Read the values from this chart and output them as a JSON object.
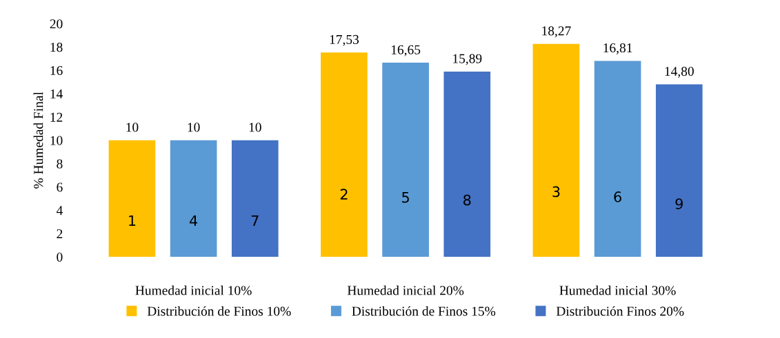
{
  "chart_data": {
    "type": "bar",
    "ylabel": "% Humedad Final",
    "categories": [
      "Humedad inicial 10%",
      "Humedad inicial 20%",
      "Humedad inicial 30%"
    ],
    "series": [
      {
        "name": "Distribución de Finos 10%",
        "color": "#ffc000",
        "values": [
          10,
          17.53,
          18.27
        ],
        "value_labels": [
          "10",
          "17,53",
          "18,27"
        ]
      },
      {
        "name": "Distribución de Finos 15%",
        "color": "#5b9bd5",
        "values": [
          10,
          16.65,
          16.81
        ],
        "value_labels": [
          "10",
          "16,65",
          "16,81"
        ]
      },
      {
        "name": "Distribución Finos 20%",
        "color": "#4472c4",
        "values": [
          10,
          15.89,
          14.8
        ],
        "value_labels": [
          "10",
          "15,89",
          "14,80"
        ]
      }
    ],
    "annotations": [
      "1",
      "2",
      "3",
      "4",
      "5",
      "6",
      "7",
      "8",
      "9"
    ],
    "ylim": [
      0,
      20
    ],
    "yticks": [
      0,
      2,
      4,
      6,
      8,
      10,
      12,
      14,
      16,
      18,
      20
    ],
    "grid": false,
    "legend": "bottom"
  }
}
